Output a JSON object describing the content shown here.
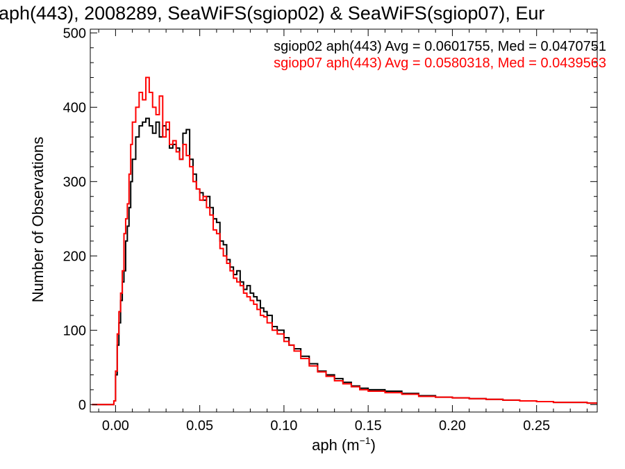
{
  "chart_data": {
    "type": "line",
    "title": "aph(443), 2008289, SeaWiFS(sgiop02) & SeaWiFS(sgiop07), Eur",
    "xlabel": "aph (m",
    "xlabel_sup": "−1",
    "xlabel_close": ")",
    "ylabel": "Number of Observations",
    "xlim": [
      -0.015,
      0.286
    ],
    "ylim": [
      -10,
      505
    ],
    "xticks": [
      {
        "value": 0.0,
        "label": "0.00"
      },
      {
        "value": 0.05,
        "label": "0.05"
      },
      {
        "value": 0.1,
        "label": "0.10"
      },
      {
        "value": 0.15,
        "label": "0.15"
      },
      {
        "value": 0.2,
        "label": "0.20"
      },
      {
        "value": 0.25,
        "label": "0.25"
      }
    ],
    "yticks": [
      {
        "value": 0,
        "label": "0"
      },
      {
        "value": 100,
        "label": "100"
      },
      {
        "value": 200,
        "label": "200"
      },
      {
        "value": 300,
        "label": "300"
      },
      {
        "value": 400,
        "label": "400"
      },
      {
        "value": 500,
        "label": "500"
      }
    ],
    "series": [
      {
        "name": "sgiop02 aph(443) Avg = 0.0601755, Med = 0.0470751",
        "color": "#000000",
        "x": [
          -0.014,
          -0.002,
          -0.001,
          0.0,
          0.001,
          0.002,
          0.003,
          0.004,
          0.005,
          0.006,
          0.007,
          0.008,
          0.009,
          0.01,
          0.012,
          0.014,
          0.016,
          0.018,
          0.02,
          0.022,
          0.024,
          0.026,
          0.028,
          0.03,
          0.032,
          0.034,
          0.036,
          0.038,
          0.04,
          0.042,
          0.044,
          0.046,
          0.048,
          0.05,
          0.052,
          0.054,
          0.056,
          0.058,
          0.06,
          0.062,
          0.064,
          0.066,
          0.068,
          0.07,
          0.072,
          0.074,
          0.076,
          0.078,
          0.08,
          0.082,
          0.084,
          0.086,
          0.088,
          0.09,
          0.093,
          0.096,
          0.1,
          0.103,
          0.106,
          0.11,
          0.115,
          0.12,
          0.125,
          0.13,
          0.135,
          0.14,
          0.145,
          0.15,
          0.16,
          0.17,
          0.18,
          0.19,
          0.2,
          0.21,
          0.22,
          0.23,
          0.24,
          0.25,
          0.26,
          0.27,
          0.28,
          0.285
        ],
        "y": [
          0,
          0,
          5,
          40,
          80,
          110,
          140,
          165,
          180,
          220,
          240,
          265,
          300,
          330,
          360,
          375,
          380,
          385,
          375,
          365,
          380,
          360,
          375,
          370,
          345,
          350,
          345,
          330,
          365,
          370,
          330,
          310,
          290,
          285,
          275,
          280,
          265,
          250,
          245,
          220,
          215,
          195,
          185,
          175,
          180,
          165,
          155,
          160,
          150,
          145,
          140,
          130,
          125,
          120,
          105,
          100,
          90,
          80,
          75,
          65,
          55,
          45,
          40,
          35,
          30,
          25,
          22,
          20,
          18,
          15,
          12,
          10,
          9,
          8,
          7,
          6,
          5,
          4,
          3,
          3,
          2,
          2
        ]
      },
      {
        "name": "sgiop07 aph(443) Avg = 0.0580318, Med = 0.0439563",
        "color": "#ff0000",
        "x": [
          -0.014,
          -0.002,
          -0.001,
          0.0,
          0.001,
          0.002,
          0.003,
          0.004,
          0.005,
          0.006,
          0.007,
          0.008,
          0.009,
          0.01,
          0.012,
          0.014,
          0.016,
          0.018,
          0.02,
          0.022,
          0.024,
          0.026,
          0.028,
          0.03,
          0.032,
          0.034,
          0.036,
          0.038,
          0.04,
          0.042,
          0.044,
          0.046,
          0.048,
          0.05,
          0.052,
          0.054,
          0.056,
          0.058,
          0.06,
          0.062,
          0.064,
          0.066,
          0.068,
          0.07,
          0.072,
          0.074,
          0.076,
          0.078,
          0.08,
          0.082,
          0.084,
          0.086,
          0.088,
          0.09,
          0.093,
          0.096,
          0.1,
          0.103,
          0.106,
          0.11,
          0.115,
          0.12,
          0.125,
          0.13,
          0.135,
          0.14,
          0.145,
          0.15,
          0.16,
          0.17,
          0.18,
          0.19,
          0.2,
          0.21,
          0.22,
          0.23,
          0.24,
          0.25,
          0.26,
          0.27,
          0.28,
          0.285
        ],
        "y": [
          0,
          0,
          5,
          45,
          95,
          125,
          150,
          180,
          230,
          250,
          270,
          310,
          350,
          380,
          400,
          420,
          410,
          440,
          420,
          400,
          390,
          415,
          360,
          380,
          350,
          355,
          340,
          330,
          350,
          335,
          320,
          300,
          290,
          275,
          280,
          265,
          255,
          235,
          230,
          210,
          200,
          190,
          180,
          170,
          165,
          160,
          150,
          145,
          140,
          135,
          128,
          120,
          118,
          110,
          100,
          95,
          85,
          80,
          72,
          62,
          52,
          44,
          38,
          32,
          28,
          24,
          20,
          18,
          16,
          14,
          11,
          10,
          9,
          8,
          7,
          6,
          5,
          4,
          3,
          3,
          2,
          2
        ]
      }
    ],
    "legend": "top-right"
  }
}
